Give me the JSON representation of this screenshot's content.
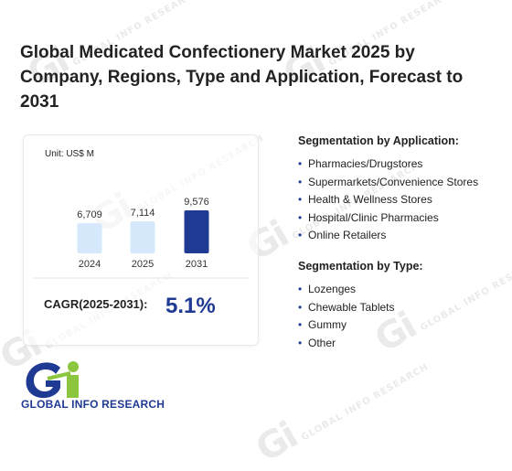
{
  "title": "Global Medicated Confectionery Market 2025 by Company, Regions, Type and Application, Forecast to 2031",
  "brand": {
    "name": "GLOBAL INFO RESEARCH",
    "colors": {
      "navy": "#1f3a93",
      "green": "#8cc63f",
      "light_bar": "#d6e8fb",
      "dark_bar": "#1f3a93"
    }
  },
  "chart_data": {
    "type": "bar",
    "unit": "Unit: US$ M",
    "categories": [
      "2024",
      "2025",
      "2031"
    ],
    "values": [
      6709,
      7114,
      9576
    ],
    "value_labels": [
      "6,709",
      "7,114",
      "9,576"
    ],
    "highlight_index": 2,
    "title": "",
    "xlabel": "",
    "ylabel": ""
  },
  "cagr": {
    "label": "CAGR(2025-2031):",
    "value": "5.1%"
  },
  "segmentation_application": {
    "title": "Segmentation by Application:",
    "items": [
      "Pharmacies/Drugstores",
      "Supermarkets/Convenience Stores",
      "Health & Wellness Stores",
      "Hospital/Clinic Pharmacies",
      "Online Retailers"
    ]
  },
  "segmentation_type": {
    "title": "Segmentation by Type:",
    "items": [
      "Lozenges",
      "Chewable Tablets",
      "Gummy",
      "Other"
    ]
  }
}
